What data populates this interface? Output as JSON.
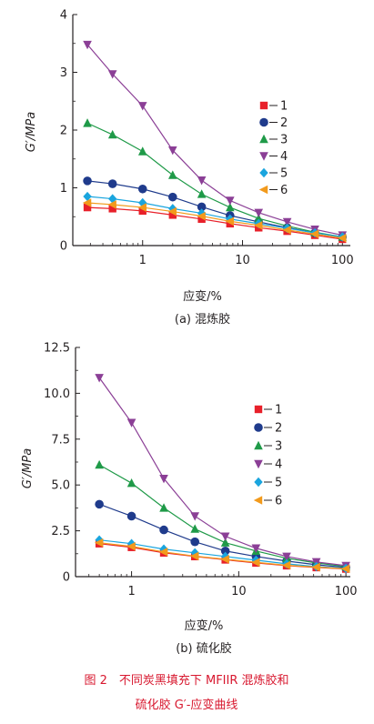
{
  "chart_data": [
    {
      "type": "line",
      "xscale": "log",
      "xlabel": "应变/%",
      "ylabel": "G′/MPa",
      "subtitle": "(a) 混炼胶",
      "xlim": [
        0.2,
        120
      ],
      "ylim": [
        0,
        4
      ],
      "xticks": [
        {
          "v": 1,
          "label": "1"
        },
        {
          "v": 10,
          "label": "10"
        },
        {
          "v": 100,
          "label": "100"
        }
      ],
      "yticks": [
        {
          "v": 0,
          "label": "0"
        },
        {
          "v": 1,
          "label": "1"
        },
        {
          "v": 2,
          "label": "2"
        },
        {
          "v": 3,
          "label": "3"
        },
        {
          "v": 4,
          "label": "4"
        }
      ],
      "legend_position": "right",
      "x": [
        0.28,
        0.5,
        1.0,
        2.0,
        3.9,
        7.5,
        14.5,
        28,
        53,
        100
      ],
      "series": [
        {
          "name": "1",
          "color": "#e8202a",
          "marker": "square",
          "values": [
            0.66,
            0.64,
            0.6,
            0.53,
            0.46,
            0.38,
            0.31,
            0.25,
            0.18,
            0.11
          ]
        },
        {
          "name": "2",
          "color": "#1f3b8c",
          "marker": "circle",
          "values": [
            1.12,
            1.07,
            0.98,
            0.84,
            0.67,
            0.52,
            0.41,
            0.31,
            0.22,
            0.15
          ]
        },
        {
          "name": "3",
          "color": "#1f9a48",
          "marker": "triangle",
          "values": [
            2.12,
            1.92,
            1.63,
            1.22,
            0.89,
            0.66,
            0.47,
            0.34,
            0.23,
            0.15
          ]
        },
        {
          "name": "4",
          "color": "#8b3f96",
          "marker": "tri-down",
          "values": [
            3.48,
            2.97,
            2.42,
            1.65,
            1.13,
            0.78,
            0.57,
            0.41,
            0.28,
            0.18
          ]
        },
        {
          "name": "5",
          "color": "#1aa5de",
          "marker": "diamond",
          "values": [
            0.85,
            0.81,
            0.74,
            0.64,
            0.56,
            0.46,
            0.38,
            0.3,
            0.22,
            0.15
          ]
        },
        {
          "name": "6",
          "color": "#f29a1c",
          "marker": "tri-left",
          "values": [
            0.74,
            0.71,
            0.66,
            0.59,
            0.51,
            0.42,
            0.35,
            0.27,
            0.2,
            0.13
          ]
        }
      ]
    },
    {
      "type": "line",
      "xscale": "log",
      "xlabel": "应变/%",
      "ylabel": "G′/MPa",
      "subtitle": "(b) 硫化胶",
      "xlim": [
        0.3,
        110
      ],
      "ylim": [
        0,
        12.5
      ],
      "xticks": [
        {
          "v": 1,
          "label": "1"
        },
        {
          "v": 10,
          "label": "10"
        },
        {
          "v": 100,
          "label": "100"
        }
      ],
      "yticks": [
        {
          "v": 0,
          "label": "0"
        },
        {
          "v": 2.5,
          "label": "2.5"
        },
        {
          "v": 5,
          "label": "5.0"
        },
        {
          "v": 7.5,
          "label": "7.5"
        },
        {
          "v": 10,
          "label": "10.0"
        },
        {
          "v": 12.5,
          "label": "12.5"
        }
      ],
      "legend_position": "right",
      "x": [
        0.5,
        1.0,
        2.0,
        3.9,
        7.5,
        14.5,
        28,
        53,
        100
      ],
      "series": [
        {
          "name": "1",
          "color": "#e8202a",
          "marker": "square",
          "values": [
            1.8,
            1.6,
            1.3,
            1.1,
            0.92,
            0.75,
            0.6,
            0.5,
            0.42
          ]
        },
        {
          "name": "2",
          "color": "#1f3b8c",
          "marker": "circle",
          "values": [
            3.95,
            3.3,
            2.55,
            1.9,
            1.4,
            1.1,
            0.85,
            0.65,
            0.5
          ]
        },
        {
          "name": "3",
          "color": "#1f9a48",
          "marker": "triangle",
          "values": [
            6.1,
            5.1,
            3.75,
            2.6,
            1.85,
            1.4,
            1.0,
            0.75,
            0.55
          ]
        },
        {
          "name": "4",
          "color": "#8b3f96",
          "marker": "tri-down",
          "values": [
            10.85,
            8.4,
            5.35,
            3.3,
            2.2,
            1.55,
            1.1,
            0.8,
            0.6
          ]
        },
        {
          "name": "5",
          "color": "#1aa5de",
          "marker": "diamond",
          "values": [
            2.0,
            1.8,
            1.5,
            1.3,
            1.1,
            0.9,
            0.7,
            0.55,
            0.45
          ]
        },
        {
          "name": "6",
          "color": "#f29a1c",
          "marker": "tri-left",
          "values": [
            1.85,
            1.65,
            1.35,
            1.12,
            0.95,
            0.78,
            0.62,
            0.52,
            0.43
          ]
        }
      ]
    }
  ],
  "caption": {
    "line1": "图 2　不同炭黑填充下 MFIIR 混炼胶和",
    "line2": "硫化胶 G′-应变曲线"
  }
}
